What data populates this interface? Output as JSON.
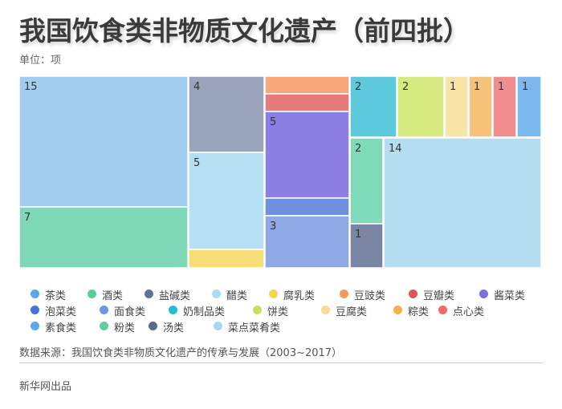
{
  "title": "我国饮食类非物质文化遗产（前四批）",
  "unit_label": "单位：项",
  "source": "数据来源：我国饮食类非物质文化遗产的传承与发展（2003~2017）",
  "credit": "新华网出品",
  "chart_data": {
    "type": "treemap",
    "title": "我国饮食类非物质文化遗产（前四批）",
    "unit": "项",
    "items": [
      {
        "name": "茶类",
        "value": 15,
        "color": "#a3cdee",
        "legend_color": "#5aa6ee"
      },
      {
        "name": "酒类",
        "value": 7,
        "color": "#7fd9b8",
        "legend_color": "#57cf9c"
      },
      {
        "name": "盐碱类",
        "value": 4,
        "color": "#9aa5bc",
        "legend_color": "#5f7396"
      },
      {
        "name": "醋类",
        "value": 5,
        "color": "#b5e0f4",
        "legend_color": "#a9dcf5"
      },
      {
        "name": "腐乳类",
        "value": 1,
        "color": "#f6df78",
        "legend_color": "#f5d64c"
      },
      {
        "name": "豆豉类",
        "value": 1,
        "color": "#f6a878",
        "legend_color": "#f59a56"
      },
      {
        "name": "豆瓣类",
        "value": 1,
        "color": "#e47a7a",
        "legend_color": "#e05555"
      },
      {
        "name": "酱菜类",
        "value": 5,
        "color": "#8b7fe3",
        "legend_color": "#7a6ee6"
      },
      {
        "name": "泡菜类",
        "value": 1,
        "color": "#6f8fe0",
        "legend_color": "#4a6fe0"
      },
      {
        "name": "面食类",
        "value": 3,
        "color": "#8fa8e6",
        "legend_color": "#6f97e8"
      },
      {
        "name": "奶制品类",
        "value": 2,
        "color": "#5cc9dc",
        "legend_color": "#2bbad3"
      },
      {
        "name": "饼类",
        "value": 2,
        "color": "#d6ea7f",
        "legend_color": "#c6e25a"
      },
      {
        "name": "豆腐类",
        "value": 1,
        "color": "#f7e4a6",
        "legend_color": "#f6dc98"
      },
      {
        "name": "粽类",
        "value": 1,
        "color": "#f6c27a",
        "legend_color": "#f6b04e"
      },
      {
        "name": "点心类",
        "value": 1,
        "color": "#f28d8d",
        "legend_color": "#f06868"
      },
      {
        "name": "素食类",
        "value": 1,
        "color": "#7cb9ef",
        "legend_color": "#5ca8ef"
      },
      {
        "name": "粉类",
        "value": 2,
        "color": "#80dbba",
        "legend_color": "#5ccf9c"
      },
      {
        "name": "汤类",
        "value": 1,
        "color": "#7a86a4",
        "legend_color": "#5a6a90"
      },
      {
        "name": "菜点菜肴类",
        "value": 14,
        "color": "#b5ddf2",
        "legend_color": "#a6d8f2"
      }
    ],
    "data_labels": [
      "15",
      "7",
      "4",
      "5",
      "",
      "",
      "",
      "5",
      "",
      "3",
      "2",
      "2",
      "1",
      "1",
      "1",
      "1",
      "2",
      "1",
      "14"
    ],
    "legend_placement": "bottom"
  }
}
